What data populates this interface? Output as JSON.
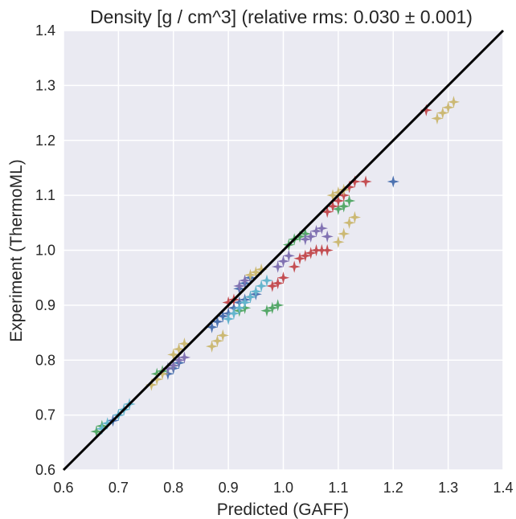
{
  "chart_data": {
    "type": "scatter",
    "title": "Density [g / cm^3] (relative rms: 0.030 ± 0.001)",
    "xlabel": "Predicted (GAFF)",
    "ylabel": "Experiment (ThermoML)",
    "xlim": [
      0.6,
      1.4
    ],
    "ylim": [
      0.6,
      1.4
    ],
    "xticks": [
      "0.6",
      "0.7",
      "0.8",
      "0.9",
      "1.0",
      "1.1",
      "1.2",
      "1.3",
      "1.4"
    ],
    "yticks": [
      "0.6",
      "0.7",
      "0.8",
      "0.9",
      "1.0",
      "1.1",
      "1.2",
      "1.3",
      "1.4"
    ],
    "grid": true,
    "background": "#eaeaf2",
    "diagonal": {
      "x": [
        0.6,
        1.4
      ],
      "y": [
        0.6,
        1.4
      ],
      "color": "#000000"
    },
    "marker": "star",
    "series": [
      {
        "color": "#4c72b0",
        "x": [
          0.69,
          0.7,
          0.87,
          0.88,
          0.89,
          0.9,
          0.91,
          0.92,
          0.93,
          0.94,
          0.95,
          0.79,
          0.8,
          0.81,
          0.92,
          0.93,
          0.94,
          1.2
        ],
        "y": [
          0.69,
          0.7,
          0.86,
          0.87,
          0.88,
          0.885,
          0.895,
          0.905,
          0.91,
          0.915,
          0.92,
          0.775,
          0.785,
          0.795,
          0.93,
          0.94,
          0.95,
          1.125
        ]
      },
      {
        "color": "#55a868",
        "x": [
          0.66,
          0.67,
          0.77,
          0.78,
          0.79,
          0.8,
          1.01,
          1.02,
          1.03,
          1.04,
          1.1,
          1.11,
          1.12,
          0.97,
          0.98,
          0.99,
          0.92,
          0.93
        ],
        "y": [
          0.67,
          0.68,
          0.775,
          0.78,
          0.785,
          0.79,
          1.01,
          1.02,
          1.025,
          1.03,
          1.075,
          1.08,
          1.09,
          0.89,
          0.895,
          0.9,
          0.89,
          0.895
        ]
      },
      {
        "color": "#c44e52",
        "x": [
          0.9,
          0.91,
          0.98,
          0.99,
          1.0,
          1.02,
          1.03,
          1.04,
          1.05,
          1.06,
          1.07,
          1.08,
          1.08,
          1.09,
          1.1,
          1.11,
          1.12,
          1.13,
          1.15,
          1.26
        ],
        "y": [
          0.905,
          0.91,
          0.935,
          0.94,
          0.95,
          0.97,
          0.985,
          0.99,
          0.995,
          1.0,
          1.0,
          1.0,
          1.07,
          1.08,
          1.09,
          1.1,
          1.115,
          1.125,
          1.125,
          1.255
        ]
      },
      {
        "color": "#8172b2",
        "x": [
          0.79,
          0.8,
          0.81,
          0.82,
          0.92,
          0.93,
          0.99,
          1.0,
          1.01,
          1.04,
          1.05,
          1.06,
          1.07,
          1.08
        ],
        "y": [
          0.785,
          0.79,
          0.8,
          0.805,
          0.935,
          0.945,
          0.97,
          0.98,
          0.99,
          1.02,
          1.025,
          1.035,
          1.04,
          1.025
        ]
      },
      {
        "color": "#ccb974",
        "x": [
          0.76,
          0.77,
          0.78,
          0.8,
          0.81,
          0.82,
          0.87,
          0.88,
          0.89,
          0.94,
          0.95,
          0.96,
          1.1,
          1.11,
          1.12,
          1.13,
          1.09,
          1.1,
          1.11,
          1.28,
          1.29,
          1.3,
          1.31
        ],
        "y": [
          0.755,
          0.765,
          0.775,
          0.81,
          0.82,
          0.83,
          0.825,
          0.835,
          0.845,
          0.955,
          0.96,
          0.965,
          1.015,
          1.03,
          1.05,
          1.06,
          1.1,
          1.105,
          1.11,
          1.24,
          1.25,
          1.26,
          1.27
        ]
      },
      {
        "color": "#64b5cd",
        "x": [
          0.67,
          0.68,
          0.7,
          0.71,
          0.72,
          0.9,
          0.91,
          0.92,
          0.93,
          0.94,
          0.95,
          0.96,
          0.97
        ],
        "y": [
          0.675,
          0.685,
          0.7,
          0.71,
          0.72,
          0.875,
          0.885,
          0.895,
          0.905,
          0.915,
          0.925,
          0.935,
          0.945
        ]
      }
    ]
  }
}
